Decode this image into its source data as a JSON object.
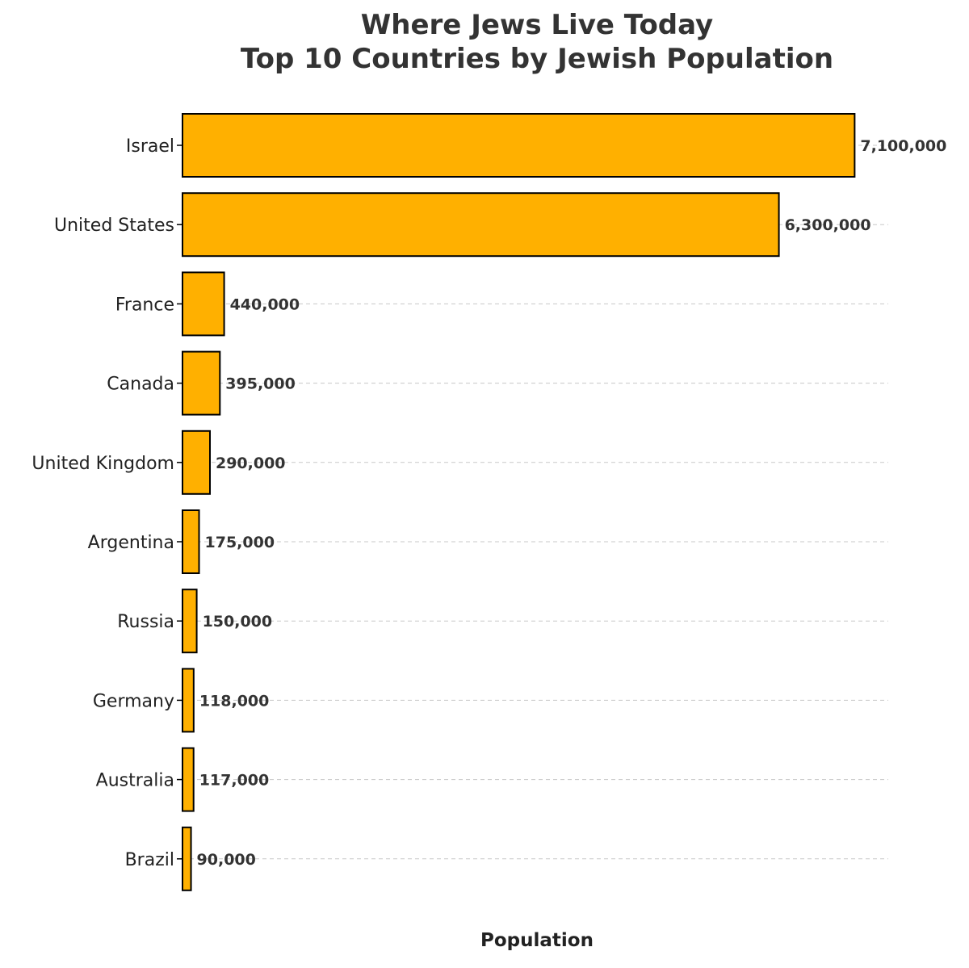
{
  "chart_data": {
    "type": "bar",
    "orientation": "horizontal",
    "title_lines": [
      "Where Jews Live Today",
      "Top 10 Countries by Jewish Population"
    ],
    "xlabel": "Population",
    "ylabel": "",
    "categories": [
      "Israel",
      "United States",
      "France",
      "Canada",
      "United Kingdom",
      "Argentina",
      "Russia",
      "Germany",
      "Australia",
      "Brazil"
    ],
    "values": [
      7100000,
      6300000,
      440000,
      395000,
      290000,
      175000,
      150000,
      118000,
      117000,
      90000
    ],
    "value_labels": [
      "7,100,000",
      "6,300,000",
      "440,000",
      "395,000",
      "290,000",
      "175,000",
      "150,000",
      "118,000",
      "117,000",
      "90,000"
    ],
    "xlim": [
      0,
      7455000
    ],
    "grid": "horizontal-dashed",
    "colors": {
      "bar": "#FFB000",
      "edge": "#000000",
      "text": "#333333",
      "grid": "#C8C8C8"
    }
  }
}
